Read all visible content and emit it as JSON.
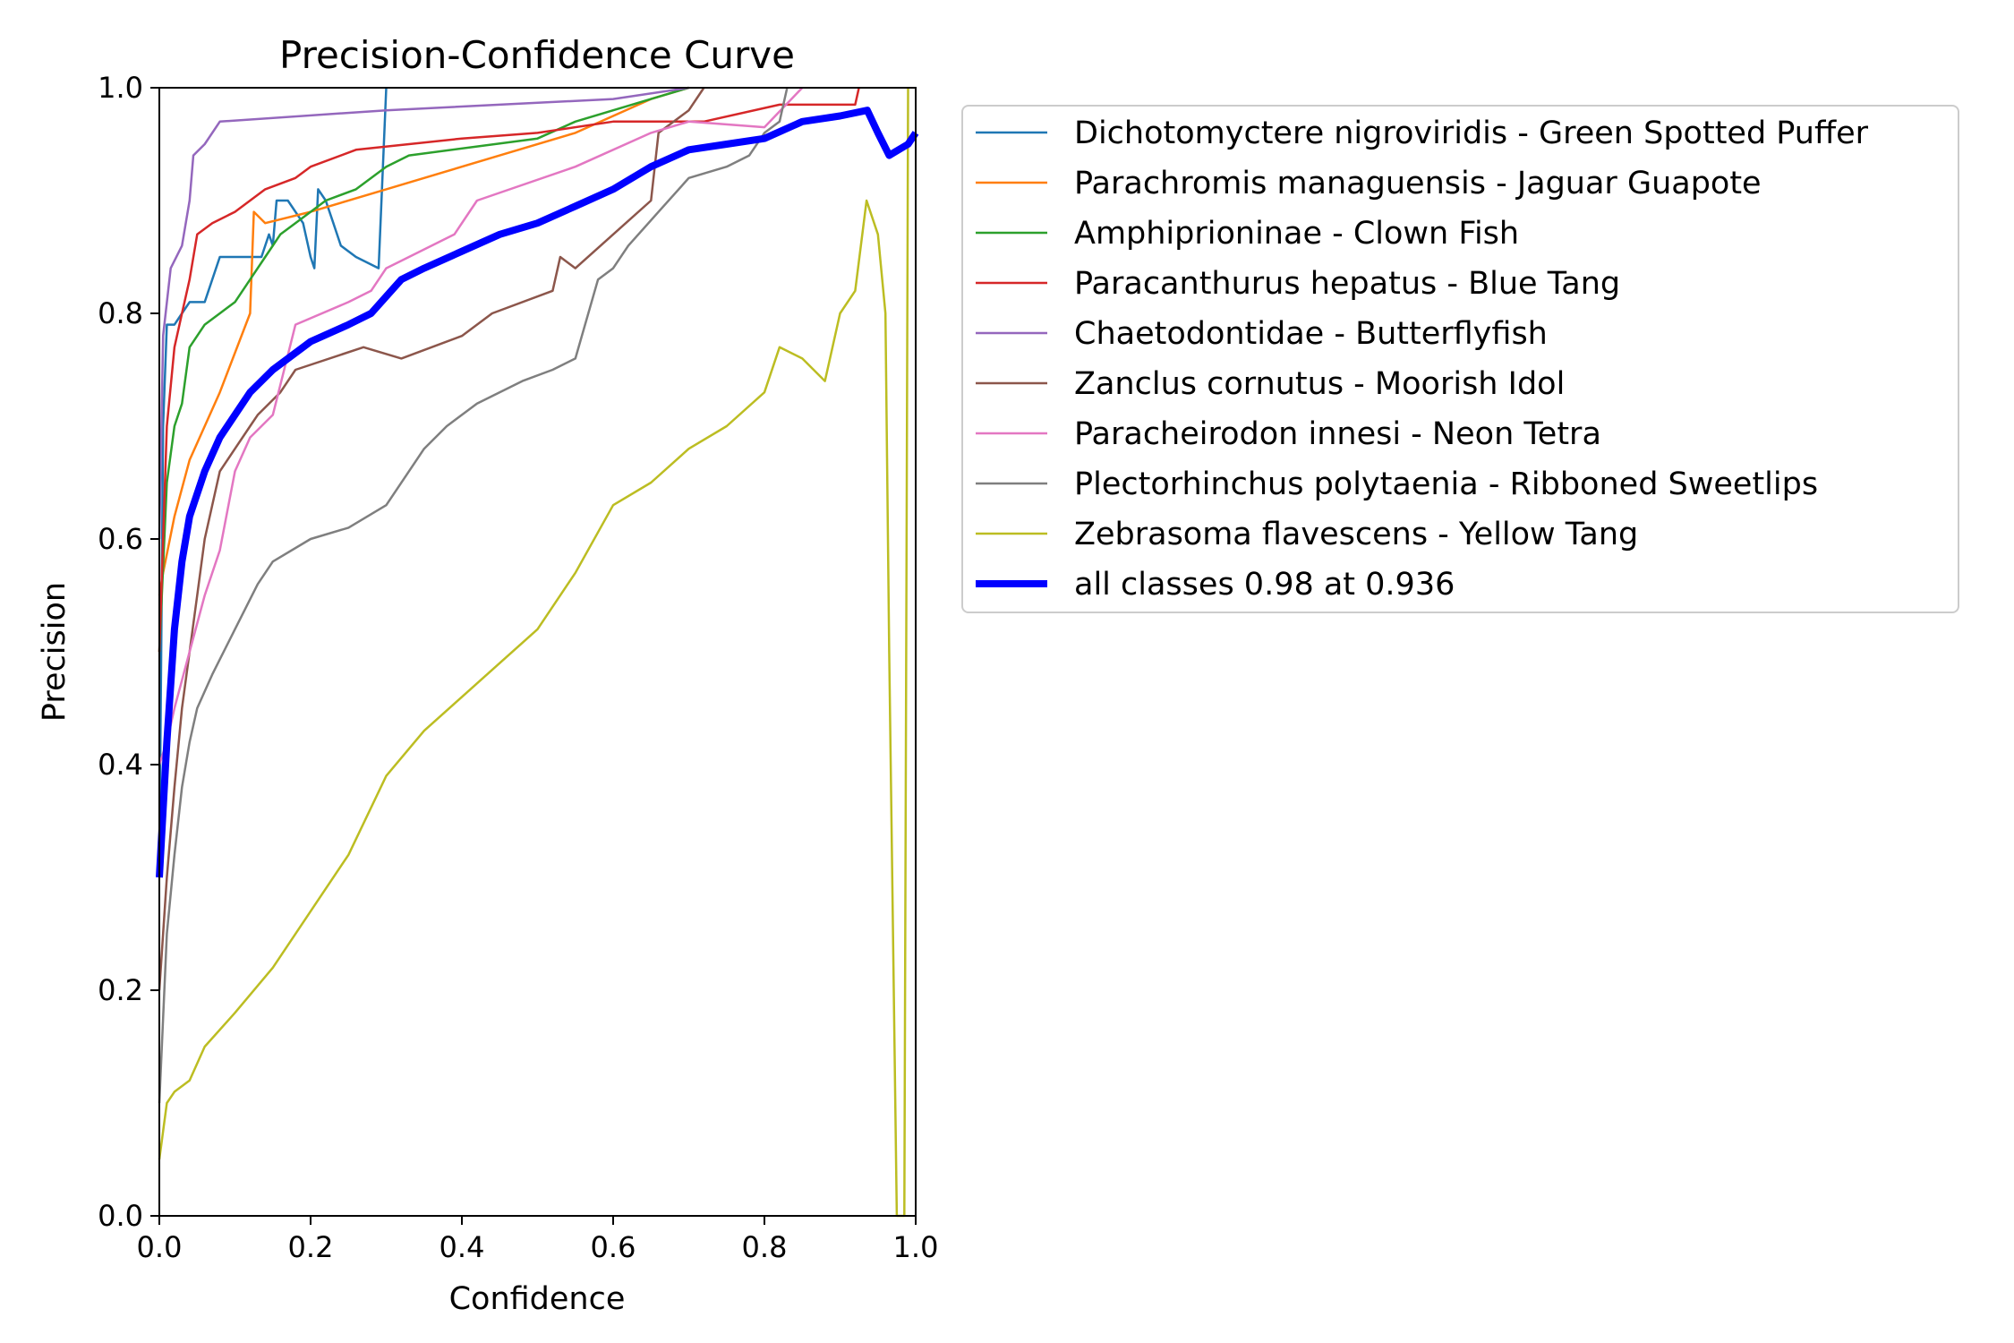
{
  "chart_data": {
    "type": "line",
    "title": "Precision-Confidence Curve",
    "xlabel": "Confidence",
    "ylabel": "Precision",
    "xlim": [
      0,
      1
    ],
    "ylim": [
      0,
      1
    ],
    "x_ticks": [
      "0.0",
      "0.2",
      "0.4",
      "0.6",
      "0.8",
      "1.0"
    ],
    "y_ticks": [
      "0.0",
      "0.2",
      "0.4",
      "0.6",
      "0.8",
      "1.0"
    ],
    "grid": false,
    "legend_position": "outside-right-top",
    "series": [
      {
        "name": "Dichotomyctere nigroviridis - Green Spotted Puffer",
        "color": "#1f77b4",
        "width": "thin",
        "points": [
          [
            0.0,
            0.3
          ],
          [
            0.005,
            0.7
          ],
          [
            0.01,
            0.79
          ],
          [
            0.02,
            0.79
          ],
          [
            0.03,
            0.8
          ],
          [
            0.04,
            0.81
          ],
          [
            0.06,
            0.81
          ],
          [
            0.065,
            0.82
          ],
          [
            0.08,
            0.85
          ],
          [
            0.1,
            0.85
          ],
          [
            0.12,
            0.85
          ],
          [
            0.135,
            0.85
          ],
          [
            0.145,
            0.87
          ],
          [
            0.15,
            0.86
          ],
          [
            0.155,
            0.9
          ],
          [
            0.17,
            0.9
          ],
          [
            0.19,
            0.88
          ],
          [
            0.2,
            0.85
          ],
          [
            0.205,
            0.84
          ],
          [
            0.21,
            0.91
          ],
          [
            0.22,
            0.9
          ],
          [
            0.23,
            0.88
          ],
          [
            0.24,
            0.86
          ],
          [
            0.26,
            0.85
          ],
          [
            0.29,
            0.84
          ],
          [
            0.3,
            1.0
          ]
        ]
      },
      {
        "name": "Parachromis managuensis - Jaguar Guapote",
        "color": "#ff7f0e",
        "width": "thin",
        "points": [
          [
            0.0,
            0.55
          ],
          [
            0.005,
            0.57
          ],
          [
            0.02,
            0.62
          ],
          [
            0.04,
            0.67
          ],
          [
            0.08,
            0.73
          ],
          [
            0.12,
            0.8
          ],
          [
            0.125,
            0.89
          ],
          [
            0.14,
            0.88
          ],
          [
            0.2,
            0.89
          ],
          [
            0.3,
            0.91
          ],
          [
            0.45,
            0.94
          ],
          [
            0.55,
            0.96
          ],
          [
            0.65,
            0.99
          ],
          [
            0.7,
            1.0
          ]
        ]
      },
      {
        "name": "Amphiprioninae - Clown Fish",
        "color": "#2ca02c",
        "width": "thin",
        "points": [
          [
            0.0,
            0.5
          ],
          [
            0.01,
            0.65
          ],
          [
            0.02,
            0.7
          ],
          [
            0.03,
            0.72
          ],
          [
            0.04,
            0.77
          ],
          [
            0.06,
            0.79
          ],
          [
            0.08,
            0.8
          ],
          [
            0.1,
            0.81
          ],
          [
            0.12,
            0.83
          ],
          [
            0.14,
            0.85
          ],
          [
            0.16,
            0.87
          ],
          [
            0.2,
            0.89
          ],
          [
            0.22,
            0.9
          ],
          [
            0.26,
            0.91
          ],
          [
            0.3,
            0.93
          ],
          [
            0.33,
            0.94
          ],
          [
            0.5,
            0.955
          ],
          [
            0.55,
            0.97
          ],
          [
            0.6,
            0.98
          ],
          [
            0.65,
            0.99
          ],
          [
            0.7,
            1.0
          ]
        ]
      },
      {
        "name": "Paracanthurus hepatus - Blue Tang",
        "color": "#d62728",
        "width": "thin",
        "points": [
          [
            0.0,
            0.5
          ],
          [
            0.01,
            0.7
          ],
          [
            0.02,
            0.77
          ],
          [
            0.03,
            0.8
          ],
          [
            0.04,
            0.83
          ],
          [
            0.05,
            0.87
          ],
          [
            0.07,
            0.88
          ],
          [
            0.1,
            0.89
          ],
          [
            0.12,
            0.9
          ],
          [
            0.14,
            0.91
          ],
          [
            0.18,
            0.92
          ],
          [
            0.2,
            0.93
          ],
          [
            0.26,
            0.945
          ],
          [
            0.4,
            0.955
          ],
          [
            0.5,
            0.96
          ],
          [
            0.6,
            0.97
          ],
          [
            0.72,
            0.97
          ],
          [
            0.82,
            0.985
          ],
          [
            0.92,
            0.985
          ],
          [
            0.925,
            1.0
          ]
        ]
      },
      {
        "name": "Chaetodontidae - Butterflyfish",
        "color": "#9467bd",
        "width": "thin",
        "points": [
          [
            0.0,
            0.6
          ],
          [
            0.005,
            0.78
          ],
          [
            0.015,
            0.84
          ],
          [
            0.03,
            0.86
          ],
          [
            0.04,
            0.9
          ],
          [
            0.045,
            0.94
          ],
          [
            0.06,
            0.95
          ],
          [
            0.08,
            0.97
          ],
          [
            0.3,
            0.98
          ],
          [
            0.6,
            0.99
          ],
          [
            0.7,
            1.0
          ]
        ]
      },
      {
        "name": "Zanclus cornutus - Moorish Idol",
        "color": "#8c564b",
        "width": "thin",
        "points": [
          [
            0.0,
            0.2
          ],
          [
            0.01,
            0.3
          ],
          [
            0.02,
            0.38
          ],
          [
            0.03,
            0.45
          ],
          [
            0.04,
            0.5
          ],
          [
            0.05,
            0.55
          ],
          [
            0.06,
            0.6
          ],
          [
            0.08,
            0.66
          ],
          [
            0.1,
            0.68
          ],
          [
            0.12,
            0.7
          ],
          [
            0.13,
            0.71
          ],
          [
            0.16,
            0.73
          ],
          [
            0.18,
            0.75
          ],
          [
            0.27,
            0.77
          ],
          [
            0.32,
            0.76
          ],
          [
            0.4,
            0.78
          ],
          [
            0.44,
            0.8
          ],
          [
            0.52,
            0.82
          ],
          [
            0.53,
            0.85
          ],
          [
            0.55,
            0.84
          ],
          [
            0.6,
            0.87
          ],
          [
            0.65,
            0.9
          ],
          [
            0.66,
            0.96
          ],
          [
            0.7,
            0.98
          ],
          [
            0.72,
            1.0
          ]
        ]
      },
      {
        "name": "Paracheirodon innesi - Neon Tetra",
        "color": "#e377c2",
        "width": "thin",
        "points": [
          [
            0.0,
            0.4
          ],
          [
            0.01,
            0.42
          ],
          [
            0.02,
            0.45
          ],
          [
            0.04,
            0.5
          ],
          [
            0.06,
            0.55
          ],
          [
            0.08,
            0.59
          ],
          [
            0.1,
            0.66
          ],
          [
            0.12,
            0.69
          ],
          [
            0.15,
            0.71
          ],
          [
            0.18,
            0.79
          ],
          [
            0.25,
            0.81
          ],
          [
            0.28,
            0.82
          ],
          [
            0.3,
            0.84
          ],
          [
            0.33,
            0.85
          ],
          [
            0.39,
            0.87
          ],
          [
            0.42,
            0.9
          ],
          [
            0.55,
            0.93
          ],
          [
            0.65,
            0.96
          ],
          [
            0.7,
            0.97
          ],
          [
            0.8,
            0.965
          ],
          [
            0.85,
            1.0
          ]
        ]
      },
      {
        "name": "Plectorhinchus polytaenia - Ribboned Sweetlips",
        "color": "#7f7f7f",
        "width": "thin",
        "points": [
          [
            0.0,
            0.1
          ],
          [
            0.01,
            0.25
          ],
          [
            0.02,
            0.32
          ],
          [
            0.03,
            0.38
          ],
          [
            0.04,
            0.42
          ],
          [
            0.05,
            0.45
          ],
          [
            0.07,
            0.48
          ],
          [
            0.1,
            0.52
          ],
          [
            0.13,
            0.56
          ],
          [
            0.15,
            0.58
          ],
          [
            0.2,
            0.6
          ],
          [
            0.25,
            0.61
          ],
          [
            0.3,
            0.63
          ],
          [
            0.35,
            0.68
          ],
          [
            0.38,
            0.7
          ],
          [
            0.42,
            0.72
          ],
          [
            0.48,
            0.74
          ],
          [
            0.52,
            0.75
          ],
          [
            0.55,
            0.76
          ],
          [
            0.58,
            0.83
          ],
          [
            0.6,
            0.84
          ],
          [
            0.62,
            0.86
          ],
          [
            0.66,
            0.89
          ],
          [
            0.7,
            0.92
          ],
          [
            0.75,
            0.93
          ],
          [
            0.78,
            0.94
          ],
          [
            0.8,
            0.96
          ],
          [
            0.82,
            0.97
          ],
          [
            0.83,
            1.0
          ]
        ]
      },
      {
        "name": "Zebrasoma flavescens - Yellow Tang",
        "color": "#bcbd22",
        "width": "thin",
        "points": [
          [
            0.0,
            0.05
          ],
          [
            0.01,
            0.1
          ],
          [
            0.02,
            0.11
          ],
          [
            0.04,
            0.12
          ],
          [
            0.06,
            0.15
          ],
          [
            0.1,
            0.18
          ],
          [
            0.15,
            0.22
          ],
          [
            0.2,
            0.27
          ],
          [
            0.25,
            0.32
          ],
          [
            0.3,
            0.39
          ],
          [
            0.35,
            0.43
          ],
          [
            0.4,
            0.46
          ],
          [
            0.45,
            0.49
          ],
          [
            0.5,
            0.52
          ],
          [
            0.55,
            0.57
          ],
          [
            0.6,
            0.63
          ],
          [
            0.65,
            0.65
          ],
          [
            0.7,
            0.68
          ],
          [
            0.75,
            0.7
          ],
          [
            0.8,
            0.73
          ],
          [
            0.82,
            0.77
          ],
          [
            0.85,
            0.76
          ],
          [
            0.88,
            0.74
          ],
          [
            0.9,
            0.8
          ],
          [
            0.92,
            0.82
          ],
          [
            0.935,
            0.9
          ],
          [
            0.95,
            0.87
          ],
          [
            0.96,
            0.8
          ],
          [
            0.965,
            0.5
          ],
          [
            0.975,
            0.0
          ],
          [
            0.985,
            0.0
          ],
          [
            0.99,
            1.0
          ]
        ]
      },
      {
        "name": "all classes 0.98 at 0.936",
        "color": "#0000ff",
        "width": "thick",
        "points": [
          [
            0.0,
            0.3
          ],
          [
            0.01,
            0.42
          ],
          [
            0.02,
            0.52
          ],
          [
            0.03,
            0.58
          ],
          [
            0.04,
            0.62
          ],
          [
            0.06,
            0.66
          ],
          [
            0.08,
            0.69
          ],
          [
            0.1,
            0.71
          ],
          [
            0.12,
            0.73
          ],
          [
            0.15,
            0.75
          ],
          [
            0.2,
            0.775
          ],
          [
            0.25,
            0.79
          ],
          [
            0.28,
            0.8
          ],
          [
            0.3,
            0.815
          ],
          [
            0.32,
            0.83
          ],
          [
            0.35,
            0.84
          ],
          [
            0.4,
            0.855
          ],
          [
            0.45,
            0.87
          ],
          [
            0.5,
            0.88
          ],
          [
            0.55,
            0.895
          ],
          [
            0.6,
            0.91
          ],
          [
            0.65,
            0.93
          ],
          [
            0.7,
            0.945
          ],
          [
            0.75,
            0.95
          ],
          [
            0.8,
            0.955
          ],
          [
            0.85,
            0.97
          ],
          [
            0.9,
            0.975
          ],
          [
            0.936,
            0.98
          ],
          [
            0.95,
            0.96
          ],
          [
            0.965,
            0.94
          ],
          [
            0.99,
            0.95
          ],
          [
            1.0,
            0.96
          ]
        ]
      }
    ]
  }
}
